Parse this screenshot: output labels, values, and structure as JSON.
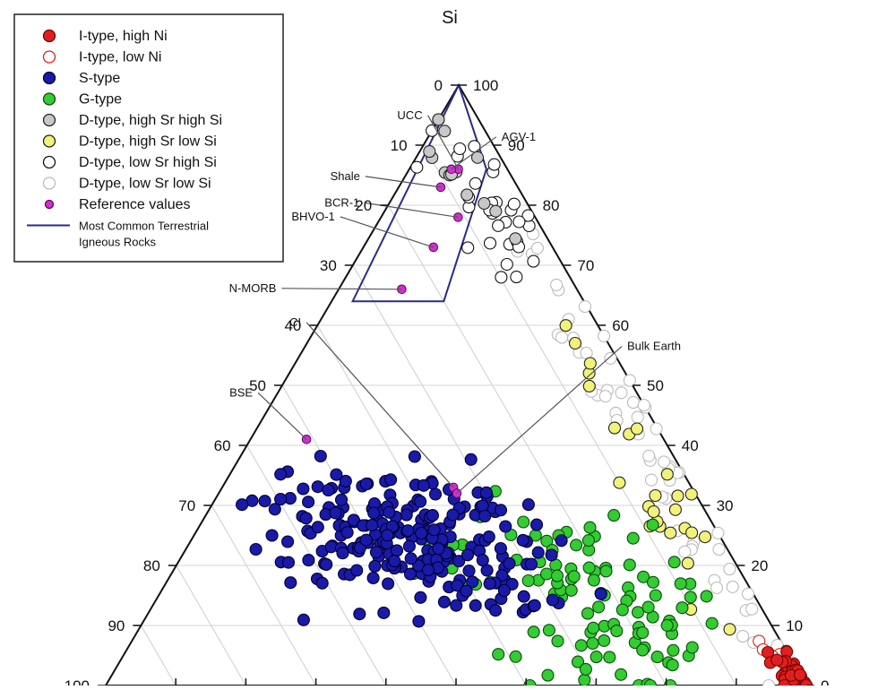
{
  "chart_data": {
    "type": "scatter",
    "subtype": "ternary",
    "apex_top_label": "Si",
    "left_axis_ticks": [
      "0",
      "10",
      "20",
      "30",
      "40",
      "50",
      "60",
      "70",
      "80",
      "90",
      "100"
    ],
    "right_axis_ticks": [
      "100",
      "90",
      "80",
      "70",
      "60",
      "50",
      "40",
      "30",
      "20",
      "10",
      "0"
    ],
    "legend": {
      "placement": "top-left",
      "entries": [
        {
          "key": "itype_high_ni",
          "label": "I-type, high Ni",
          "marker": "filled-circle",
          "fill": "#e02020",
          "stroke": "#7a0000"
        },
        {
          "key": "itype_low_ni",
          "label": "I-type, low Ni",
          "marker": "open-circle",
          "fill": "#ffffff",
          "stroke": "#e02020"
        },
        {
          "key": "stype",
          "label": "S-type",
          "marker": "filled-circle",
          "fill": "#1a1aa8",
          "stroke": "#000033"
        },
        {
          "key": "gtype",
          "label": "G-type",
          "marker": "filled-circle",
          "fill": "#33cc33",
          "stroke": "#0a4a0a"
        },
        {
          "key": "d_hsr_hsi",
          "label": "D-type, high Sr high Si",
          "marker": "filled-circle",
          "fill": "#c8c8c8",
          "stroke": "#222222"
        },
        {
          "key": "d_hsr_lsi",
          "label": "D-type, high Sr low Si",
          "marker": "filled-circle",
          "fill": "#f2f27a",
          "stroke": "#222222"
        },
        {
          "key": "d_lsr_hsi",
          "label": "D-type, low Sr high Si",
          "marker": "open-circle",
          "fill": "#ffffff",
          "stroke": "#111111"
        },
        {
          "key": "d_lsr_lsi",
          "label": "D-type, low Sr low Si",
          "marker": "open-circle",
          "fill": "#ffffff",
          "stroke": "#bbbbbb"
        },
        {
          "key": "reference",
          "label": "Reference values",
          "marker": "small-filled-circle",
          "fill": "#cc33cc",
          "stroke": "#660066"
        },
        {
          "key": "terrestrial",
          "label": "Most Common Terrestrial Igneous Rocks",
          "label_lines": [
            "Most Common Terrestrial",
            "Igneous Rocks"
          ],
          "marker": "line",
          "stroke": "#2a2a8a"
        }
      ]
    },
    "reference_points": [
      {
        "label": "UCC",
        "si": 86,
        "left": 7
      },
      {
        "label": "AGV-1",
        "si": 86,
        "left": 8
      },
      {
        "label": "Shale",
        "si": 83,
        "left": 11
      },
      {
        "label": "BCR-1",
        "si": 78,
        "left": 11
      },
      {
        "label": "BHVO-1",
        "si": 73,
        "left": 17
      },
      {
        "label": "N-MORB",
        "si": 66,
        "left": 25
      },
      {
        "label": "CI",
        "si": 33,
        "left": 34
      },
      {
        "label": "Bulk Earth",
        "si": 32,
        "left": 34
      },
      {
        "label": "BSE",
        "si": 41,
        "left": 51
      }
    ],
    "terrestrial_region": [
      {
        "si": 100,
        "left": 0
      },
      {
        "si": 64,
        "left": 33
      },
      {
        "si": 64,
        "left": 20
      },
      {
        "si": 86,
        "left": 3
      }
    ],
    "series": [
      {
        "key": "itype_high_ni",
        "approx_count": 45,
        "center": {
          "si": 1,
          "left": 1
        },
        "spread": {
          "si": 2,
          "left": 1.2
        }
      },
      {
        "key": "itype_low_ni",
        "approx_count": 6,
        "center": {
          "si": 4,
          "left": 2
        },
        "spread": {
          "si": 2,
          "left": 1
        }
      },
      {
        "key": "stype",
        "approx_count": 240,
        "center": {
          "si": 24,
          "left": 45
        },
        "spread": {
          "si": 6,
          "left": 9
        }
      },
      {
        "key": "gtype",
        "approx_count": 110,
        "center": {
          "si": 14,
          "left": 24
        },
        "spread": {
          "si": 8,
          "left": 9
        }
      },
      {
        "key": "d_hsr_hsi",
        "approx_count": 14,
        "center": {
          "si": 85,
          "left": 7
        },
        "spread": {
          "si": 5,
          "left": 3
        }
      },
      {
        "key": "d_hsr_lsi",
        "approx_count": 26,
        "center": {
          "si": 36,
          "left": 6
        },
        "spread": {
          "si": 14,
          "left": 2.5
        }
      },
      {
        "key": "d_lsr_hsi",
        "approx_count": 30,
        "center": {
          "si": 80,
          "left": 6
        },
        "spread": {
          "si": 7,
          "left": 3
        }
      },
      {
        "key": "d_lsr_lsi",
        "approx_count": 60,
        "center": {
          "si": 40,
          "left": 3
        },
        "spread": {
          "si": 22,
          "left": 2
        }
      }
    ]
  }
}
